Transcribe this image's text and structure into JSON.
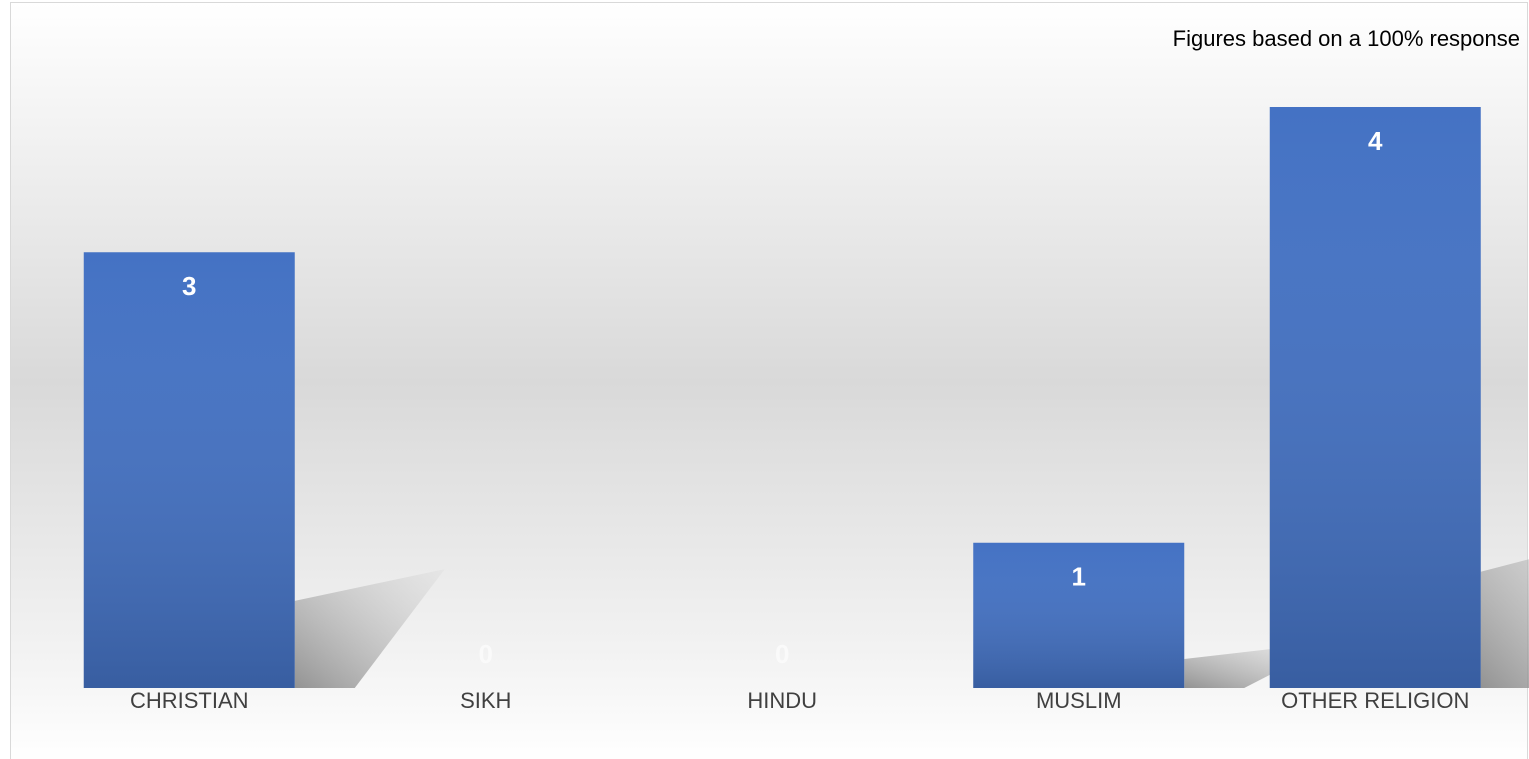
{
  "chart_data": {
    "type": "bar",
    "annotation": "Figures based on a 100% response",
    "categories": [
      "CHRISTIAN",
      "SIKH",
      "HINDU",
      "MUSLIM",
      "OTHER RELIGION"
    ],
    "values": [
      3,
      0,
      0,
      1,
      4
    ],
    "color": "#4472c4"
  }
}
